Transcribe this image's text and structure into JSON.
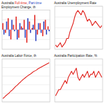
{
  "chart_data": [
    {
      "type": "bar",
      "title": "Australia Full-time, Part-time",
      "subtitle": "Employment Change, th",
      "categories": [
        null,
        null,
        null,
        null,
        null,
        null,
        null,
        null,
        null,
        null,
        null,
        null,
        null,
        null,
        null,
        null,
        null,
        null
      ],
      "series": [
        {
          "name": "Full-time",
          "color": "#e0211c",
          "values": [
            20,
            -10,
            35,
            -30,
            15,
            40,
            -25,
            10,
            30,
            -40,
            25,
            5,
            45,
            -15,
            20,
            -20,
            30,
            10
          ]
        },
        {
          "name": "Part-time",
          "color": "#2a3fbf",
          "values": [
            -15,
            25,
            -20,
            30,
            -5,
            -30,
            20,
            5,
            -25,
            35,
            -10,
            15,
            -35,
            20,
            -10,
            25,
            -15,
            -5
          ]
        }
      ],
      "ylim": [
        -60,
        60
      ],
      "yticks": [
        -60,
        -30,
        0,
        30,
        60
      ],
      "grid": true,
      "tick_labels": false
    },
    {
      "type": "line",
      "title": "Australia Unemployment Rate",
      "categories": [
        null,
        null,
        null,
        null,
        null,
        null,
        null,
        null,
        null,
        null,
        null,
        null,
        null,
        null,
        null,
        null,
        null,
        null,
        null,
        null,
        null,
        null,
        null,
        null,
        null,
        null,
        null,
        null,
        null,
        null
      ],
      "values": [
        4.2,
        4.1,
        4.2,
        4.3,
        4.1,
        4.2,
        4.3,
        4.5,
        4.5,
        4.8,
        5.0,
        5.2,
        5.5,
        5.7,
        5.8,
        5.7,
        5.6,
        5.8,
        5.7,
        5.5,
        5.3,
        5.4,
        5.3,
        5.1,
        5.2,
        5.3,
        5.2,
        5.1,
        5.0,
        5.1
      ],
      "color": "#e0211c",
      "ylim": [
        4,
        6
      ],
      "yticks": [
        4,
        4.5,
        5,
        5.5,
        6
      ],
      "grid": true,
      "tick_labels": false
    },
    {
      "type": "line",
      "title": "Australia Labor Force, th",
      "categories": [
        null,
        null,
        null,
        null,
        null,
        null,
        null,
        null,
        null,
        null,
        null,
        null,
        null,
        null,
        null,
        null,
        null,
        null,
        null,
        null,
        null,
        null,
        null,
        null,
        null,
        null,
        null,
        null,
        null,
        null
      ],
      "values": [
        10880,
        10910,
        10950,
        10980,
        11010,
        11050,
        11080,
        11120,
        11160,
        11190,
        11230,
        11260,
        11300,
        11330,
        11360,
        11390,
        11420,
        11440,
        11470,
        11500,
        11520,
        11540,
        11570,
        11590,
        11610,
        11630,
        11650,
        11670,
        11690,
        11710
      ],
      "color": "#e0211c",
      "ylim": [
        10800,
        11800
      ],
      "yticks": [
        10800,
        11000,
        11200,
        11400,
        11600,
        11800
      ],
      "grid": true,
      "tick_labels": false
    },
    {
      "type": "line",
      "title": "Australia Participation Rate, %",
      "categories": [
        null,
        null,
        null,
        null,
        null,
        null,
        null,
        null,
        null,
        null,
        null,
        null,
        null,
        null,
        null,
        null,
        null,
        null,
        null,
        null,
        null,
        null,
        null,
        null,
        null,
        null,
        null,
        null,
        null,
        null
      ],
      "values": [
        64.6,
        64.7,
        64.8,
        64.8,
        64.9,
        65.0,
        65.1,
        65.0,
        65.2,
        65.3,
        65.4,
        65.3,
        65.4,
        65.5,
        65.2,
        65.1,
        65.2,
        65.3,
        65.2,
        65.3,
        65.4,
        65.2,
        65.3,
        65.3,
        65.4,
        65.2,
        65.3,
        65.4,
        65.3,
        65.2
      ],
      "color": "#e0211c",
      "ylim": [
        64.4,
        65.8
      ],
      "yticks": [
        64.4,
        64.8,
        65.2,
        65.6
      ],
      "grid": true,
      "tick_labels": false
    }
  ]
}
